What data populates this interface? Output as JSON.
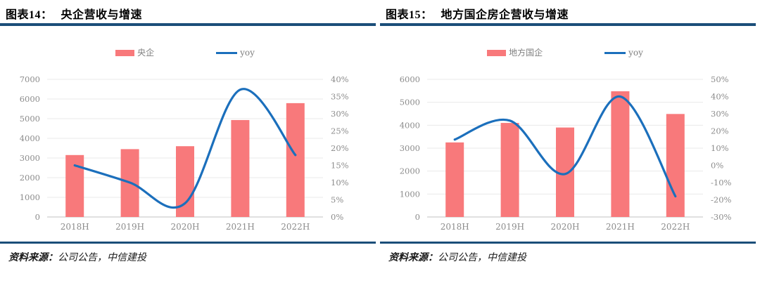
{
  "colors": {
    "rule": "#1B4E79",
    "bar": "#F8797B",
    "line": "#1B6FBC",
    "grid": "#EAEAEA",
    "axis_line": "#CDCDCD",
    "axis_text": "#8C8C8C"
  },
  "panels": [
    {
      "figure_label": "图表",
      "figure_number": "14",
      "figure_colon": "：",
      "title": "央企营收与增速",
      "source_label": "资料来源：",
      "source_text": "公司公告，中信建投"
    },
    {
      "figure_label": "图表",
      "figure_number": "15",
      "figure_colon": "：",
      "title": "地方国企房企营收与增速",
      "source_label": "资料来源：",
      "source_text": "公司公告，中信建投"
    }
  ],
  "chart_data": [
    {
      "type": "bar",
      "combo": "bar+line",
      "title": "图表14：央企营收与增速",
      "categories": [
        "2018H",
        "2019H",
        "2020H",
        "2021H",
        "2022H"
      ],
      "series": [
        {
          "name": "央企",
          "kind": "bar",
          "axis": "left",
          "values": [
            3150,
            3450,
            3600,
            4930,
            5790
          ]
        },
        {
          "name": "yoy",
          "kind": "line",
          "axis": "right",
          "values": [
            15,
            10,
            4,
            37,
            18
          ],
          "unit": "%"
        }
      ],
      "left_axis": {
        "min": 0,
        "max": 7000,
        "step": 1000
      },
      "right_axis": {
        "min": 0,
        "max": 40,
        "step": 5,
        "suffix": "%"
      },
      "grid": true,
      "legend_position": "top"
    },
    {
      "type": "bar",
      "combo": "bar+line",
      "title": "图表15：地方国企房企营收与增速",
      "categories": [
        "2018H",
        "2019H",
        "2020H",
        "2021H",
        "2022H"
      ],
      "series": [
        {
          "name": "地方国企",
          "kind": "bar",
          "axis": "left",
          "values": [
            3250,
            4100,
            3900,
            5480,
            4490
          ]
        },
        {
          "name": "yoy",
          "kind": "line",
          "axis": "right",
          "values": [
            15,
            26,
            -5,
            40,
            -18
          ],
          "unit": "%"
        }
      ],
      "left_axis": {
        "min": 0,
        "max": 6000,
        "step": 1000
      },
      "right_axis": {
        "min": -30,
        "max": 50,
        "step": 10,
        "suffix": "%"
      },
      "grid": true,
      "legend_position": "top"
    }
  ]
}
